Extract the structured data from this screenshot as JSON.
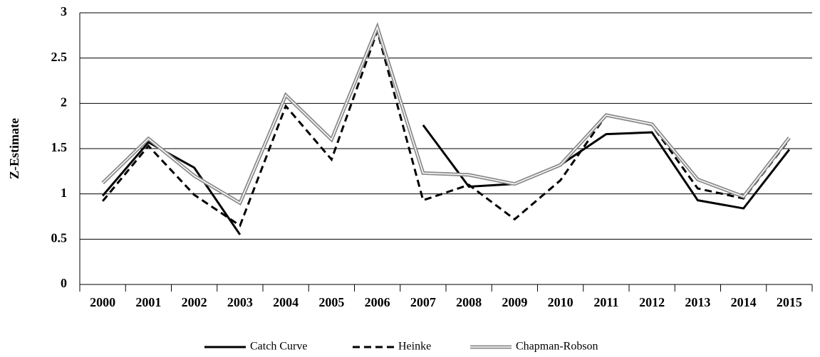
{
  "chart_data": {
    "type": "line",
    "y_label": "Z-Estimate",
    "categories": [
      "2000",
      "2001",
      "2002",
      "2003",
      "2004",
      "2005",
      "2006",
      "2007",
      "2008",
      "2009",
      "2010",
      "2011",
      "2012",
      "2013",
      "2014",
      "2015"
    ],
    "series": [
      {
        "name": "Catch Curve",
        "color": "#000000",
        "style": "solid",
        "values": [
          0.98,
          1.57,
          1.29,
          0.55,
          null,
          null,
          null,
          1.76,
          1.08,
          1.11,
          1.32,
          1.66,
          1.68,
          0.93,
          0.84,
          1.49
        ]
      },
      {
        "name": "Heinke",
        "color": "#000000",
        "style": "dashed",
        "values": [
          0.92,
          1.53,
          0.99,
          0.65,
          1.97,
          1.38,
          2.8,
          0.93,
          1.1,
          0.72,
          1.15,
          1.87,
          1.76,
          1.06,
          0.95,
          1.6
        ]
      },
      {
        "name": "Chapman-Robson",
        "color": "#8a8a8a",
        "style": "double",
        "values": [
          1.12,
          1.61,
          1.2,
          0.9,
          2.09,
          1.6,
          2.84,
          1.23,
          1.21,
          1.11,
          1.32,
          1.87,
          1.77,
          1.16,
          0.97,
          1.62
        ]
      }
    ],
    "ylim": [
      0,
      3
    ],
    "yticks": [
      0,
      0.5,
      1,
      1.5,
      2,
      2.5,
      3
    ],
    "grid": true,
    "legend": "bottom"
  }
}
